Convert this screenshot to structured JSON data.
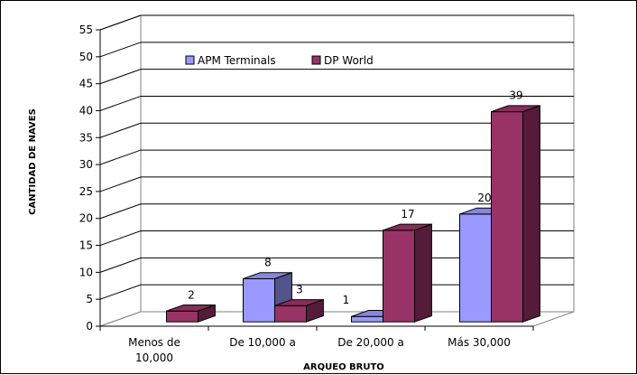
{
  "chart_data": {
    "type": "bar",
    "title": "",
    "xlabel": "ARQUEO BRUTO",
    "ylabel": "CANTIDAD DE NAVES",
    "categories": [
      [
        "Menos de",
        "10,000"
      ],
      [
        "De 10,000 a"
      ],
      [
        "De 20,000 a"
      ],
      [
        "Más 30,000"
      ]
    ],
    "series": [
      {
        "name": "APM Terminals",
        "values": [
          0,
          8,
          1,
          20
        ],
        "labels": [
          "",
          "8",
          "1",
          "20"
        ],
        "color": "#9999ff"
      },
      {
        "name": "DP World",
        "values": [
          2,
          3,
          17,
          39
        ],
        "labels": [
          "2",
          "3",
          "17",
          "39"
        ],
        "color": "#993366"
      }
    ],
    "ylim": [
      0,
      55
    ],
    "yticks": [
      0,
      5,
      10,
      15,
      20,
      25,
      30,
      35,
      40,
      45,
      50,
      55
    ],
    "grid": true,
    "legend_position": "top",
    "style": "3d-clustered-column"
  }
}
